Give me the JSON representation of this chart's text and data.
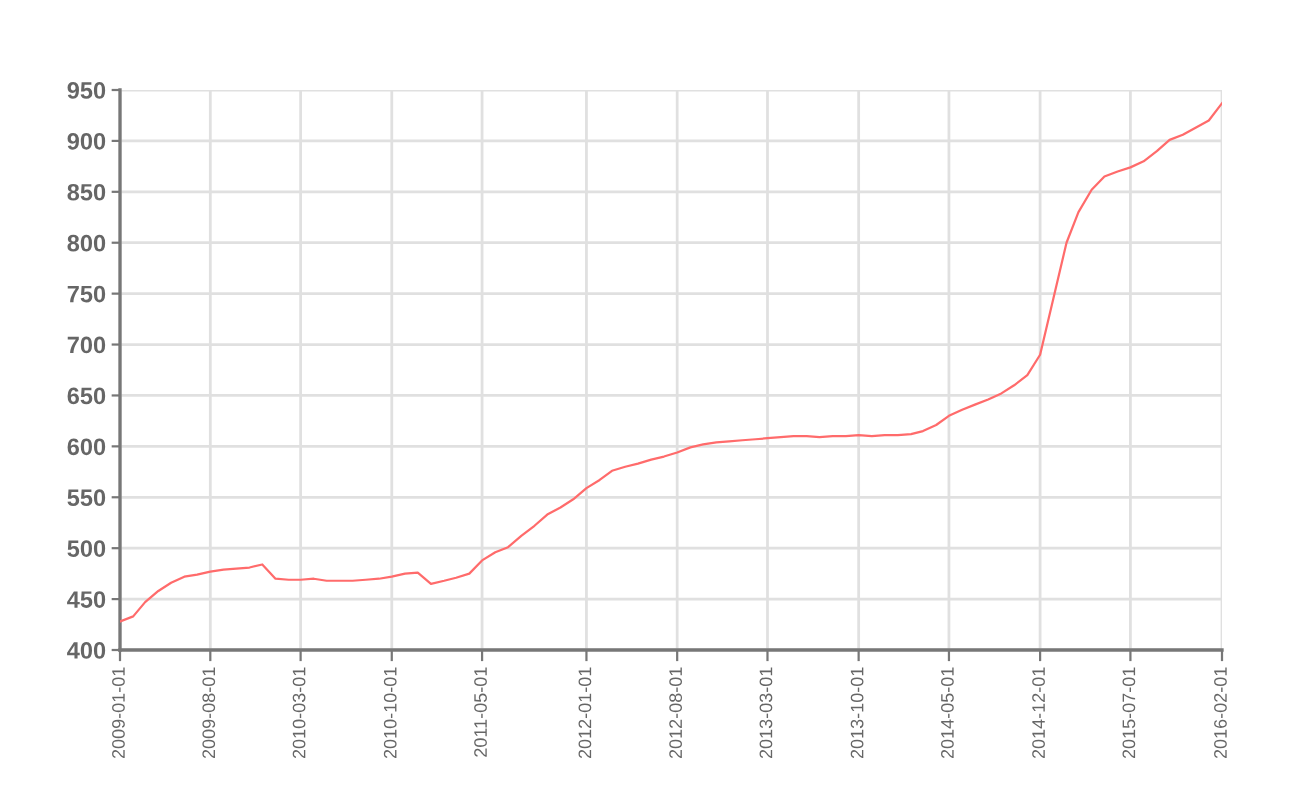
{
  "chart_data": {
    "type": "line",
    "x": [
      "2009-01",
      "2009-02",
      "2009-03",
      "2009-04",
      "2009-05",
      "2009-06",
      "2009-07",
      "2009-08",
      "2009-09",
      "2009-10",
      "2009-11",
      "2009-12",
      "2010-01",
      "2010-02",
      "2010-03",
      "2010-04",
      "2010-05",
      "2010-06",
      "2010-07",
      "2010-08",
      "2010-09",
      "2010-10",
      "2010-11",
      "2010-12",
      "2011-01",
      "2011-02",
      "2011-03",
      "2011-04",
      "2011-05",
      "2011-06",
      "2011-07",
      "2011-08",
      "2011-09",
      "2011-10",
      "2011-11",
      "2011-12",
      "2012-01",
      "2012-02",
      "2012-03",
      "2012-04",
      "2012-05",
      "2012-06",
      "2012-07",
      "2012-08",
      "2012-09",
      "2012-10",
      "2012-11",
      "2012-12",
      "2013-01",
      "2013-02",
      "2013-03",
      "2013-04",
      "2013-05",
      "2013-06",
      "2013-07",
      "2013-08",
      "2013-09",
      "2013-10",
      "2013-11",
      "2013-12",
      "2014-01",
      "2014-02",
      "2014-03",
      "2014-04",
      "2014-05",
      "2014-06",
      "2014-07",
      "2014-08",
      "2014-09",
      "2014-10",
      "2014-11",
      "2014-12",
      "2015-01",
      "2015-02",
      "2015-03",
      "2015-04",
      "2015-05",
      "2015-06",
      "2015-07",
      "2015-08",
      "2015-09",
      "2015-10",
      "2015-11",
      "2015-12",
      "2016-01",
      "2016-02"
    ],
    "series": [
      {
        "color": "#ff6b6b",
        "values": [
          428,
          433,
          447,
          458,
          466,
          472,
          474,
          477,
          479,
          480,
          481,
          484,
          470,
          469,
          469,
          470,
          468,
          468,
          468,
          469,
          470,
          472,
          475,
          476,
          465,
          468,
          471,
          475,
          488,
          496,
          501,
          512,
          522,
          533,
          540,
          548,
          559,
          567,
          576,
          580,
          583,
          587,
          590,
          594,
          599,
          602,
          604,
          605,
          606,
          607,
          608,
          609,
          610,
          610,
          609,
          610,
          610,
          611,
          610,
          611,
          611,
          612,
          615,
          621,
          630,
          636,
          641,
          646,
          652,
          660,
          670,
          690,
          745,
          800,
          830,
          852,
          865,
          870,
          874,
          880,
          890,
          901,
          906,
          913,
          920,
          937
        ]
      }
    ],
    "xlim": [
      "2009-01-01",
      "2016-02-01"
    ],
    "xticks": [
      "2009-01-01",
      "2009-08-01",
      "2010-03-01",
      "2010-10-01",
      "2011-05-01",
      "2012-01-01",
      "2012-08-01",
      "2013-03-01",
      "2013-10-01",
      "2014-05-01",
      "2014-12-01",
      "2015-07-01",
      "2016-02-01"
    ],
    "ylim": [
      400,
      950
    ],
    "yticks": [
      400,
      450,
      500,
      550,
      600,
      650,
      700,
      750,
      800,
      850,
      900,
      950
    ],
    "grid": true,
    "line_style": "solid"
  }
}
